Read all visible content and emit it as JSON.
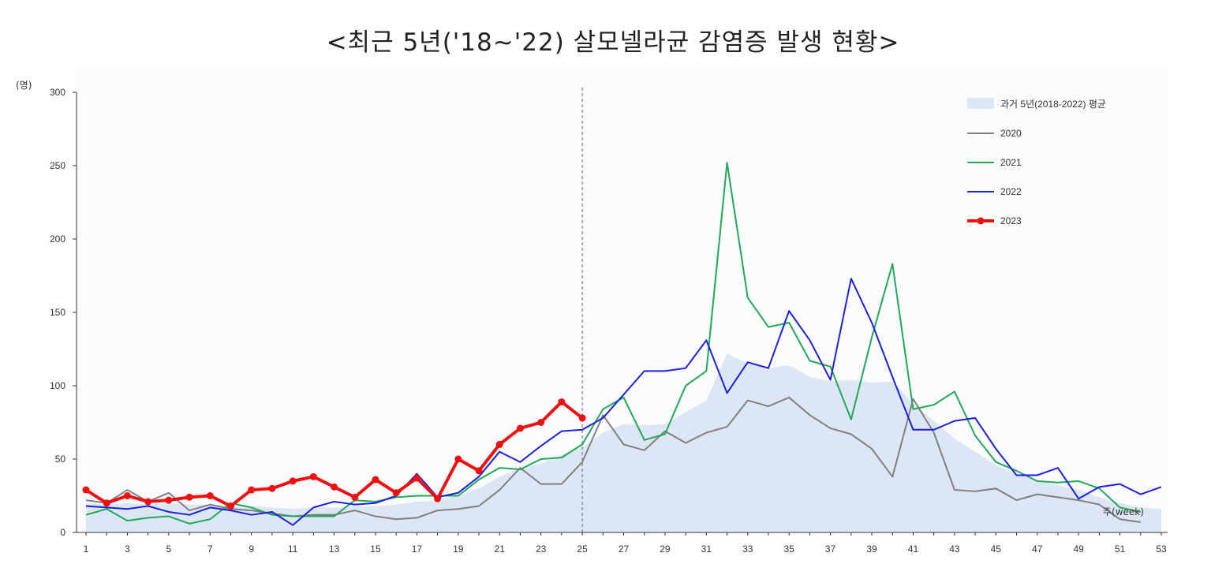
{
  "chart_data": {
    "type": "line",
    "title": "<최근 5년('18~'22) 살모넬라균 감염증 발생 현황>",
    "ylabel": "(명)",
    "xlabel": "주(week)",
    "ylim": [
      0,
      300
    ],
    "yticks": [
      0,
      50,
      100,
      150,
      200,
      250,
      300
    ],
    "xlim": [
      1,
      53
    ],
    "xticks": [
      1,
      3,
      5,
      7,
      9,
      11,
      13,
      15,
      17,
      19,
      21,
      23,
      25,
      27,
      29,
      31,
      33,
      35,
      37,
      39,
      41,
      43,
      45,
      47,
      49,
      51,
      53
    ],
    "reference_week": 25,
    "grid": false,
    "legend_position": "top-right",
    "area_series": {
      "name": "과거 5년(2018-2022) 평균",
      "color": "#dce6f4",
      "x": [
        1,
        2,
        3,
        4,
        5,
        6,
        7,
        8,
        9,
        10,
        11,
        12,
        13,
        14,
        15,
        16,
        17,
        18,
        19,
        20,
        21,
        22,
        23,
        24,
        25,
        26,
        27,
        28,
        29,
        30,
        31,
        32,
        33,
        34,
        35,
        36,
        37,
        38,
        39,
        40,
        41,
        42,
        43,
        44,
        45,
        46,
        47,
        48,
        49,
        50,
        51,
        52,
        53
      ],
      "values": [
        20,
        19,
        20,
        19,
        20,
        19,
        19,
        18,
        18,
        17,
        16,
        17,
        17,
        18,
        18,
        19,
        21,
        22,
        25,
        30,
        38,
        44,
        47,
        53,
        58,
        68,
        74,
        73,
        74,
        82,
        90,
        122,
        115,
        112,
        114,
        106,
        103,
        104,
        102,
        103,
        88,
        76,
        64,
        55,
        46,
        40,
        36,
        32,
        29,
        24,
        20,
        17,
        16
      ]
    },
    "series": [
      {
        "name": "2020",
        "color": "#808080",
        "x": [
          1,
          2,
          3,
          4,
          5,
          6,
          7,
          8,
          9,
          10,
          11,
          12,
          13,
          14,
          15,
          16,
          17,
          18,
          19,
          20,
          21,
          22,
          23,
          24,
          25,
          26,
          27,
          28,
          29,
          30,
          31,
          32,
          33,
          34,
          35,
          36,
          37,
          38,
          39,
          40,
          41,
          42,
          43,
          44,
          45,
          46,
          47,
          48,
          49,
          50,
          51,
          52
        ],
        "values": [
          22,
          20,
          29,
          21,
          27,
          15,
          19,
          16,
          15,
          13,
          11,
          12,
          12,
          15,
          11,
          9,
          10,
          15,
          16,
          18,
          29,
          44,
          33,
          33,
          48,
          80,
          60,
          56,
          69,
          61,
          68,
          72,
          90,
          86,
          92,
          80,
          71,
          67,
          57,
          38,
          91,
          68,
          29,
          28,
          30,
          22,
          26,
          24,
          22,
          19,
          9,
          7
        ]
      },
      {
        "name": "2021",
        "color": "#22a857",
        "x": [
          1,
          2,
          3,
          4,
          5,
          6,
          7,
          8,
          9,
          10,
          11,
          12,
          13,
          14,
          15,
          16,
          17,
          18,
          19,
          20,
          21,
          22,
          23,
          24,
          25,
          26,
          27,
          28,
          29,
          30,
          31,
          32,
          33,
          34,
          35,
          36,
          37,
          38,
          39,
          40,
          41,
          42,
          43,
          44,
          45,
          46,
          47,
          48,
          49,
          50,
          51,
          52
        ],
        "values": [
          12,
          16,
          8,
          10,
          11,
          6,
          9,
          20,
          17,
          12,
          11,
          11,
          11,
          22,
          21,
          24,
          25,
          25,
          25,
          36,
          44,
          43,
          50,
          51,
          60,
          84,
          92,
          63,
          67,
          100,
          110,
          252,
          160,
          140,
          143,
          117,
          113,
          77,
          133,
          183,
          84,
          87,
          96,
          66,
          48,
          42,
          35,
          34,
          35,
          30,
          17,
          14
        ]
      },
      {
        "name": "2022",
        "color": "#1f1fe0",
        "x": [
          1,
          2,
          3,
          4,
          5,
          6,
          7,
          8,
          9,
          10,
          11,
          12,
          13,
          14,
          15,
          16,
          17,
          18,
          19,
          20,
          21,
          22,
          23,
          24,
          25,
          26,
          27,
          28,
          29,
          30,
          31,
          32,
          33,
          34,
          35,
          36,
          37,
          38,
          39,
          40,
          41,
          42,
          43,
          44,
          45,
          46,
          47,
          48,
          49,
          50,
          51,
          52,
          53
        ],
        "values": [
          18,
          17,
          16,
          18,
          14,
          12,
          17,
          15,
          12,
          14,
          5,
          17,
          21,
          19,
          20,
          25,
          40,
          24,
          27,
          38,
          55,
          48,
          59,
          69,
          70,
          78,
          94,
          110,
          110,
          112,
          131,
          95,
          116,
          112,
          151,
          131,
          104,
          173,
          143,
          106,
          70,
          70,
          76,
          78,
          57,
          39,
          39,
          44,
          23,
          31,
          33,
          26,
          31
        ]
      },
      {
        "name": "2023",
        "color": "#ee1111",
        "x": [
          1,
          2,
          3,
          4,
          5,
          6,
          7,
          8,
          9,
          10,
          11,
          12,
          13,
          14,
          15,
          16,
          17,
          18,
          19,
          20,
          21,
          22,
          23,
          24,
          25
        ],
        "values": [
          29,
          20,
          25,
          21,
          22,
          24,
          25,
          18,
          29,
          30,
          35,
          38,
          31,
          24,
          36,
          27,
          37,
          23,
          50,
          42,
          60,
          71,
          75,
          89,
          78
        ]
      }
    ]
  }
}
